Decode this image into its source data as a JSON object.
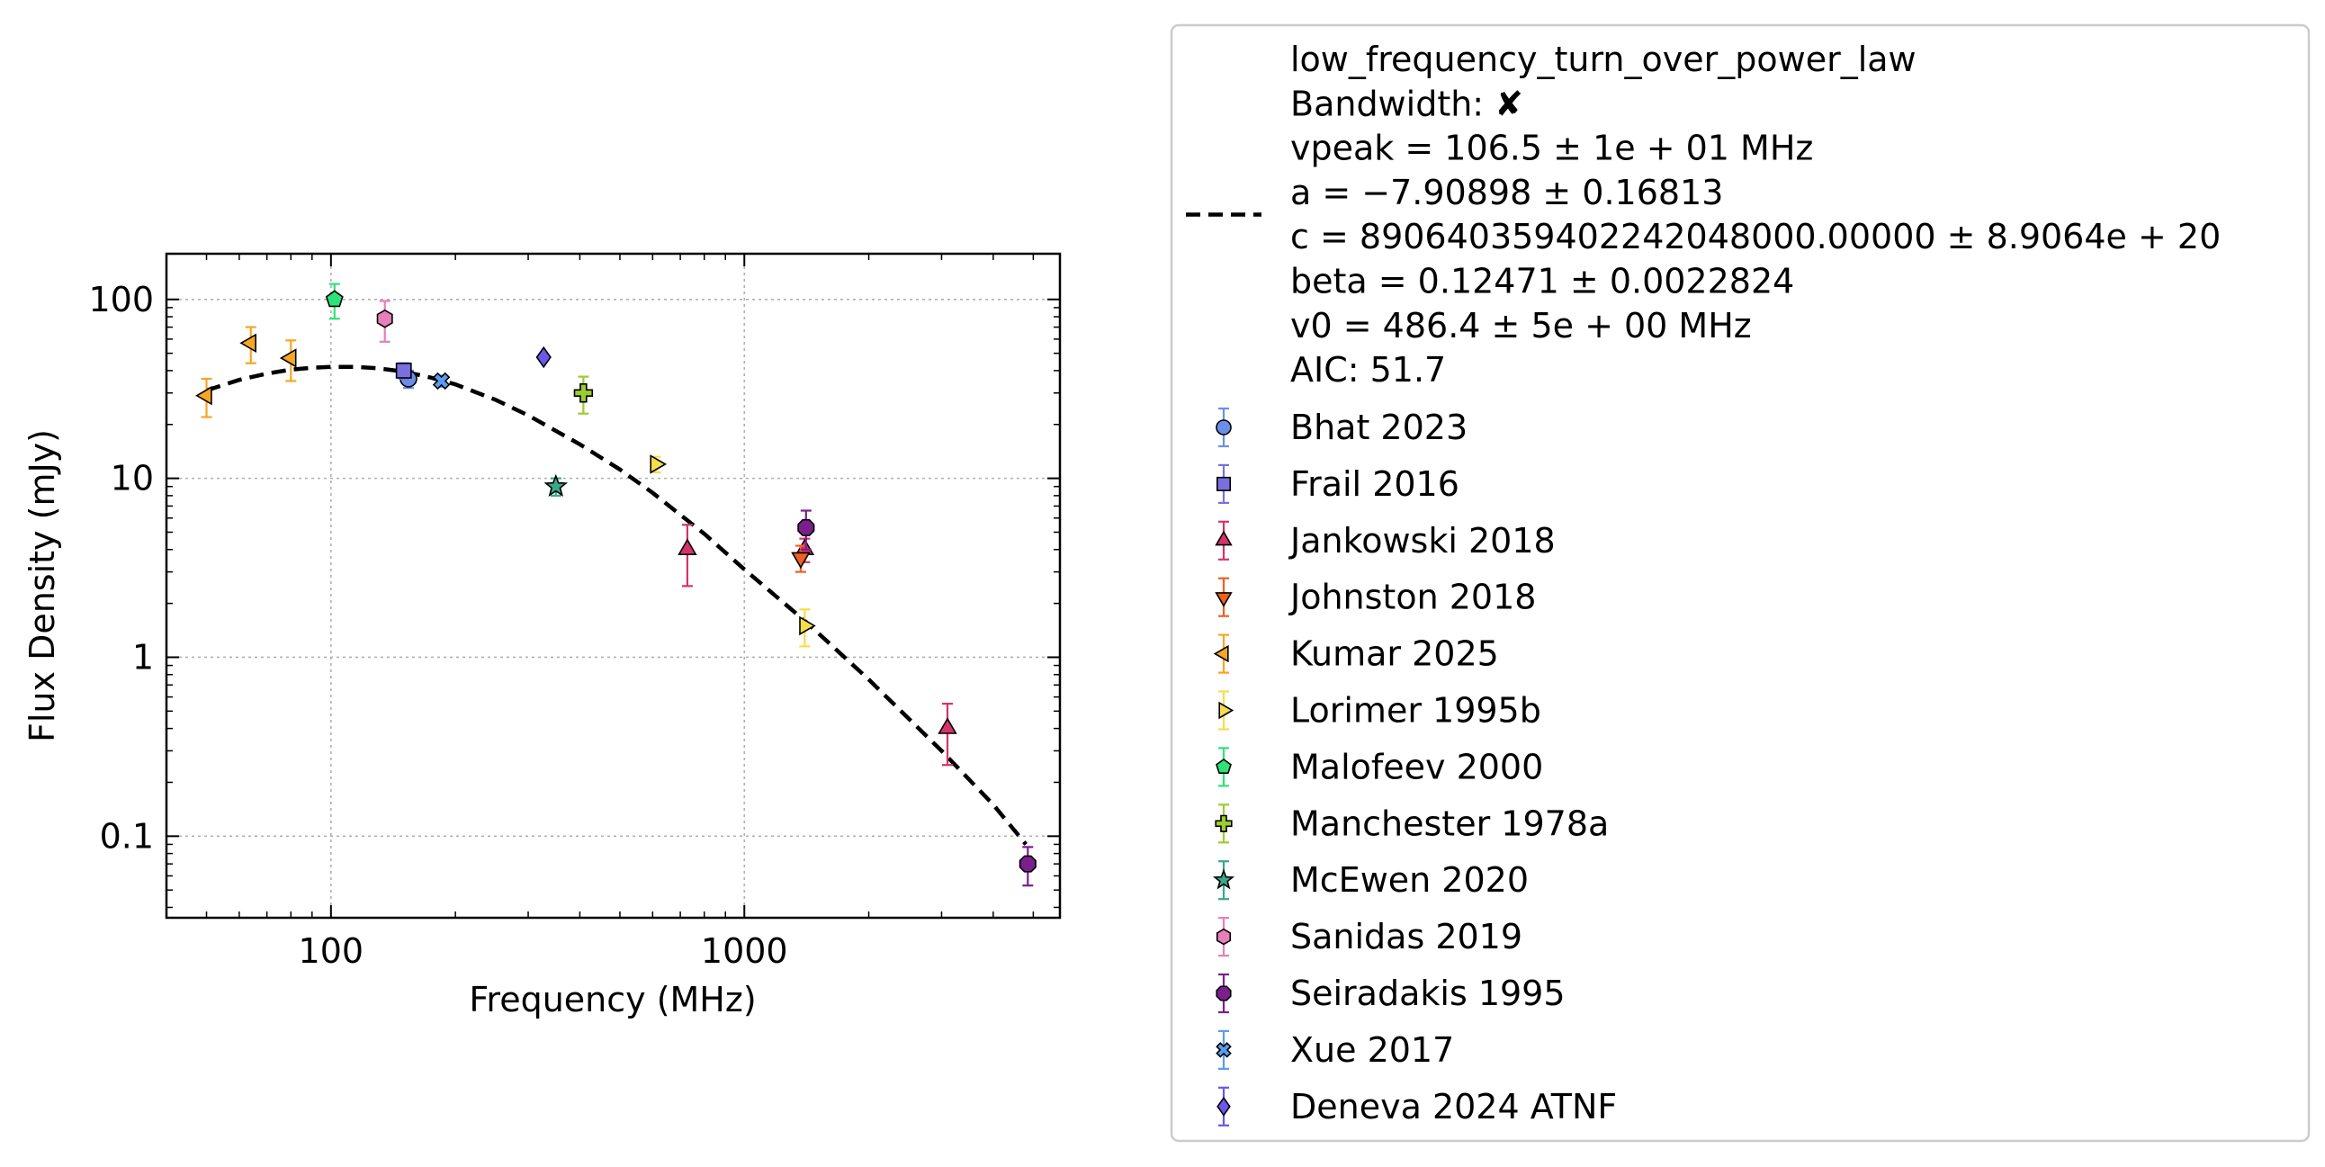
{
  "chart_data": {
    "type": "scatter",
    "xlabel": "Frequency (MHz)",
    "ylabel": "Flux Density (mJy)",
    "xscale": "log",
    "yscale": "log",
    "xlim": [
      40,
      5800
    ],
    "ylim": [
      0.035,
      180
    ],
    "xticks": [
      {
        "value": 100,
        "label": "100"
      },
      {
        "value": 1000,
        "label": "1000"
      }
    ],
    "yticks": [
      {
        "value": 0.1,
        "label": "0.1"
      },
      {
        "value": 1,
        "label": "1"
      },
      {
        "value": 10,
        "label": "10"
      },
      {
        "value": 100,
        "label": "100"
      }
    ],
    "grid": true,
    "legend_placement": "outside-right",
    "fit": {
      "name": "low_frequency_turn_over_power_law",
      "style": "dashed",
      "color": "#000000",
      "lines": [
        "low_frequency_turn_over_power_law",
        "Bandwidth: ✘",
        "vpeak = 106.5 ± 1e + 01 MHz",
        "a = −7.90898 ± 0.16813",
        "c = 890640359402242048000.00000 ± 8.9064e + 20",
        "beta = 0.12471 ± 0.0022824",
        "v0 = 486.4 ± 5e + 00 MHz",
        "AIC: 51.7"
      ],
      "points": [
        {
          "x": 50,
          "y": 31
        },
        {
          "x": 60,
          "y": 35.5
        },
        {
          "x": 70,
          "y": 38.5
        },
        {
          "x": 80,
          "y": 40.5
        },
        {
          "x": 90,
          "y": 41.5
        },
        {
          "x": 100,
          "y": 42
        },
        {
          "x": 115,
          "y": 42
        },
        {
          "x": 130,
          "y": 41.2
        },
        {
          "x": 150,
          "y": 39.5
        },
        {
          "x": 175,
          "y": 36.5
        },
        {
          "x": 200,
          "y": 33.5
        },
        {
          "x": 250,
          "y": 27.5
        },
        {
          "x": 300,
          "y": 22.5
        },
        {
          "x": 400,
          "y": 15.5
        },
        {
          "x": 500,
          "y": 11.2
        },
        {
          "x": 600,
          "y": 8.3
        },
        {
          "x": 800,
          "y": 4.9
        },
        {
          "x": 1000,
          "y": 3.1
        },
        {
          "x": 1400,
          "y": 1.6
        },
        {
          "x": 2000,
          "y": 0.75
        },
        {
          "x": 3000,
          "y": 0.3
        },
        {
          "x": 4000,
          "y": 0.15
        },
        {
          "x": 4800,
          "y": 0.09
        }
      ]
    },
    "series": [
      {
        "name": "Bhat 2023",
        "marker": "circle",
        "color": "#6b8fe8",
        "points": [
          {
            "x": 154,
            "y": 36,
            "err": 4
          }
        ]
      },
      {
        "name": "Frail 2016",
        "marker": "square",
        "color": "#7b6fe0",
        "points": [
          {
            "x": 150,
            "y": 40,
            "err": 4
          }
        ]
      },
      {
        "name": "Jankowski 2018",
        "marker": "triangle-up",
        "color": "#d6336c",
        "points": [
          {
            "x": 728,
            "y": 4.0,
            "err": 1.5
          },
          {
            "x": 1400,
            "y": 4.0,
            "err": 0.6
          },
          {
            "x": 3100,
            "y": 0.4,
            "err": 0.15
          }
        ]
      },
      {
        "name": "Johnston 2018",
        "marker": "triangle-down",
        "color": "#f06020",
        "points": [
          {
            "x": 1369,
            "y": 3.6,
            "err": 0.6
          }
        ]
      },
      {
        "name": "Kumar 2025",
        "marker": "triangle-left",
        "color": "#f5a623",
        "points": [
          {
            "x": 50,
            "y": 29,
            "err": 7
          },
          {
            "x": 64,
            "y": 57,
            "err": 13
          },
          {
            "x": 80,
            "y": 47,
            "err": 12
          }
        ]
      },
      {
        "name": "Lorimer 1995b",
        "marker": "triangle-right",
        "color": "#f7dc4c",
        "points": [
          {
            "x": 610,
            "y": 12,
            "err": 1.2
          },
          {
            "x": 1400,
            "y": 1.5,
            "err": 0.35
          }
        ]
      },
      {
        "name": "Malofeev 2000",
        "marker": "pentagon",
        "color": "#2ee27a",
        "points": [
          {
            "x": 102,
            "y": 100,
            "err": 22
          }
        ]
      },
      {
        "name": "Manchester 1978a",
        "marker": "plus",
        "color": "#9acd32",
        "points": [
          {
            "x": 408,
            "y": 30,
            "err": 7
          }
        ]
      },
      {
        "name": "McEwen 2020",
        "marker": "star",
        "color": "#3aa88a",
        "points": [
          {
            "x": 350,
            "y": 9,
            "err": 1
          }
        ]
      },
      {
        "name": "Sanidas 2019",
        "marker": "hexagon",
        "color": "#e87fb8",
        "points": [
          {
            "x": 135,
            "y": 78,
            "err": 20
          }
        ]
      },
      {
        "name": "Seiradakis 1995",
        "marker": "octagon",
        "color": "#7b1f8c",
        "points": [
          {
            "x": 1410,
            "y": 5.3,
            "err": 1.3
          },
          {
            "x": 4850,
            "y": 0.07,
            "err": 0.017
          }
        ]
      },
      {
        "name": "Xue 2017",
        "marker": "x",
        "color": "#5b9bf0",
        "points": [
          {
            "x": 185,
            "y": 35,
            "err": 2.5
          }
        ]
      },
      {
        "name": "Deneva 2024 ATNF",
        "marker": "diamond",
        "color": "#6b57e8",
        "points": [
          {
            "x": 327,
            "y": 47.5,
            "err": 0
          }
        ]
      }
    ]
  }
}
